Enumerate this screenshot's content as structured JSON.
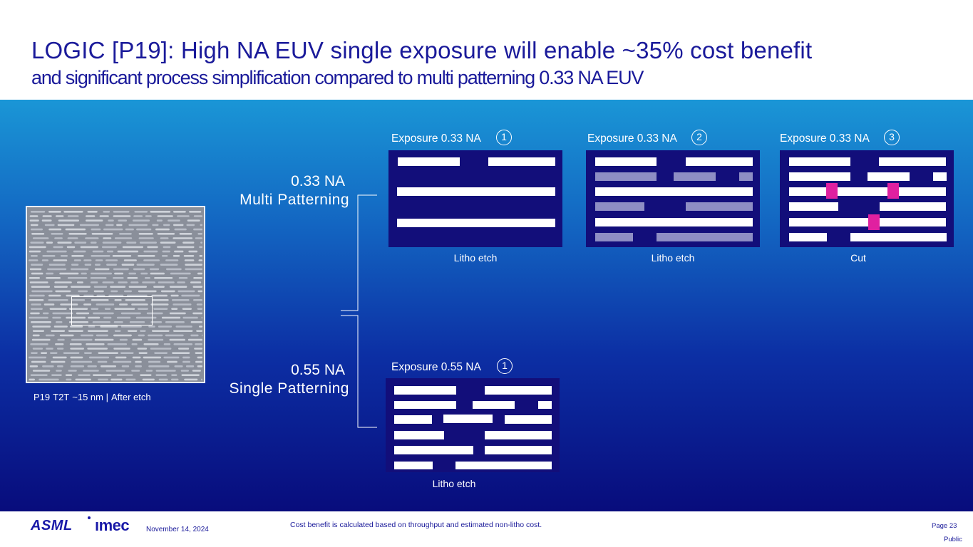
{
  "header": {
    "title": "LOGIC [P19]: High NA EUV single exposure will enable ~35% cost benefit",
    "subtitle": "and significant process simplification compared to multi patterning 0.33 NA EUV"
  },
  "sem_image": {
    "caption_parts": [
      "P19",
      "T2T",
      "~15 nm |",
      "After etch"
    ]
  },
  "rows": {
    "multi": {
      "na": "0.33 NA",
      "label": "Multi Patterning"
    },
    "single": {
      "na": "0.55 NA",
      "label": "Single Patterning"
    }
  },
  "exposures": [
    {
      "label": "Exposure 0.33 NA",
      "step": "1",
      "caption": "Litho etch"
    },
    {
      "label": "Exposure 0.33 NA",
      "step": "2",
      "caption": "Litho etch"
    },
    {
      "label": "Exposure 0.33 NA",
      "step": "3",
      "caption": "Cut"
    },
    {
      "label": "Exposure 0.55 NA",
      "step": "1",
      "caption": "Litho etch"
    }
  ],
  "colors": {
    "panel_bg": "#120e7a",
    "line_white": "#ffffff",
    "line_ghost": "#8e8ec4",
    "cut_magenta": "#e020a0",
    "brand_blue": "#1a1a9a"
  },
  "footer": {
    "asml_logo": "ASML",
    "imec_logo": "ımec",
    "date": "November 14, 2024",
    "note": "Cost benefit is calculated based on throughput and estimated non-litho cost.",
    "page": "Page 23",
    "classification": "Public"
  }
}
